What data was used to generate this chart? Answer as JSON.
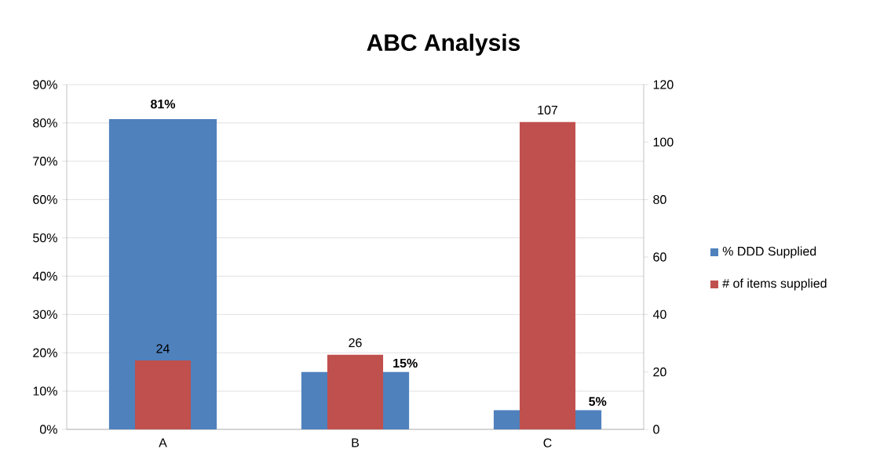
{
  "chart_data": {
    "type": "bar",
    "title": "ABC Analysis",
    "categories": [
      "A",
      "B",
      "C"
    ],
    "series": [
      {
        "name": "% DDD Supplied",
        "color": "#4f81bd",
        "values": [
          81,
          15,
          5
        ],
        "value_labels": [
          "81%",
          "15%",
          "5%"
        ]
      },
      {
        "name": "# of items supplied",
        "color": "#c0504d",
        "values": [
          24,
          26,
          107
        ],
        "value_labels": [
          "24",
          "26",
          "107"
        ],
        "axis": "y2"
      }
    ],
    "ylim": [
      0,
      90
    ],
    "yticks": [
      {
        "value": 0,
        "label": "0%"
      },
      {
        "value": 10,
        "label": "10%"
      },
      {
        "value": 20,
        "label": "20%"
      },
      {
        "value": 30,
        "label": "30%"
      },
      {
        "value": 40,
        "label": "40%"
      },
      {
        "value": 50,
        "label": "50%"
      },
      {
        "value": 60,
        "label": "60%"
      },
      {
        "value": 70,
        "label": "70%"
      },
      {
        "value": 80,
        "label": "80%"
      },
      {
        "value": 90,
        "label": "90%"
      }
    ],
    "y2lim": [
      0,
      120
    ],
    "y2ticks": [
      0,
      20,
      40,
      60,
      80,
      100,
      120
    ],
    "grid": "y",
    "legend": "right"
  }
}
